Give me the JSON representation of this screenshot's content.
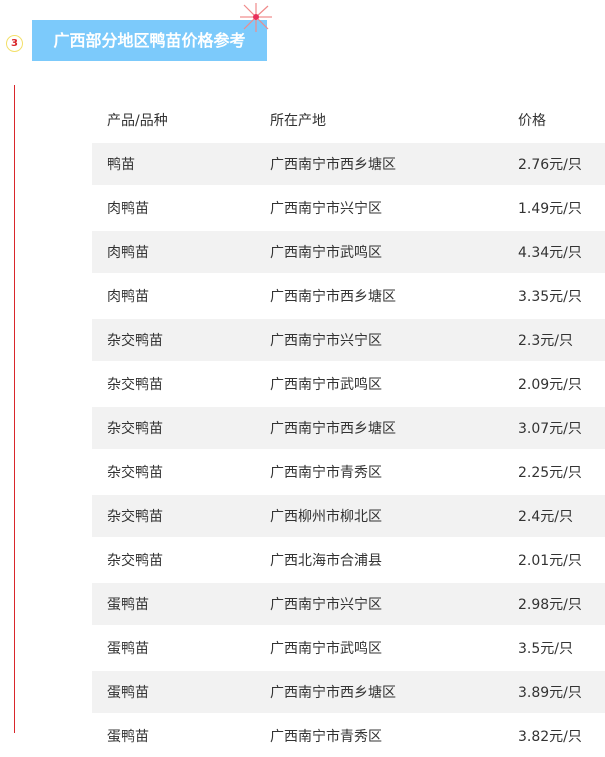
{
  "section": {
    "number": "3",
    "title": "广西部分地区鸭苗价格参考"
  },
  "table": {
    "headers": [
      "产品/品种",
      "所在产地",
      "价格"
    ],
    "rows": [
      [
        "鸭苗",
        "广西南宁市西乡塘区",
        "2.76元/只"
      ],
      [
        "肉鸭苗",
        "广西南宁市兴宁区",
        "1.49元/只"
      ],
      [
        "肉鸭苗",
        "广西南宁市武鸣区",
        "4.34元/只"
      ],
      [
        "肉鸭苗",
        "广西南宁市西乡塘区",
        "3.35元/只"
      ],
      [
        "杂交鸭苗",
        "广西南宁市兴宁区",
        "2.3元/只"
      ],
      [
        "杂交鸭苗",
        "广西南宁市武鸣区",
        "2.09元/只"
      ],
      [
        "杂交鸭苗",
        "广西南宁市西乡塘区",
        "3.07元/只"
      ],
      [
        "杂交鸭苗",
        "广西南宁市青秀区",
        "2.25元/只"
      ],
      [
        "杂交鸭苗",
        "广西柳州市柳北区",
        "2.4元/只"
      ],
      [
        "杂交鸭苗",
        "广西北海市合浦县",
        "2.01元/只"
      ],
      [
        "蛋鸭苗",
        "广西南宁市兴宁区",
        "2.98元/只"
      ],
      [
        "蛋鸭苗",
        "广西南宁市武鸣区",
        "3.5元/只"
      ],
      [
        "蛋鸭苗",
        "广西南宁市西乡塘区",
        "3.89元/只"
      ],
      [
        "蛋鸭苗",
        "广西南宁市青秀区",
        "3.82元/只"
      ]
    ]
  }
}
